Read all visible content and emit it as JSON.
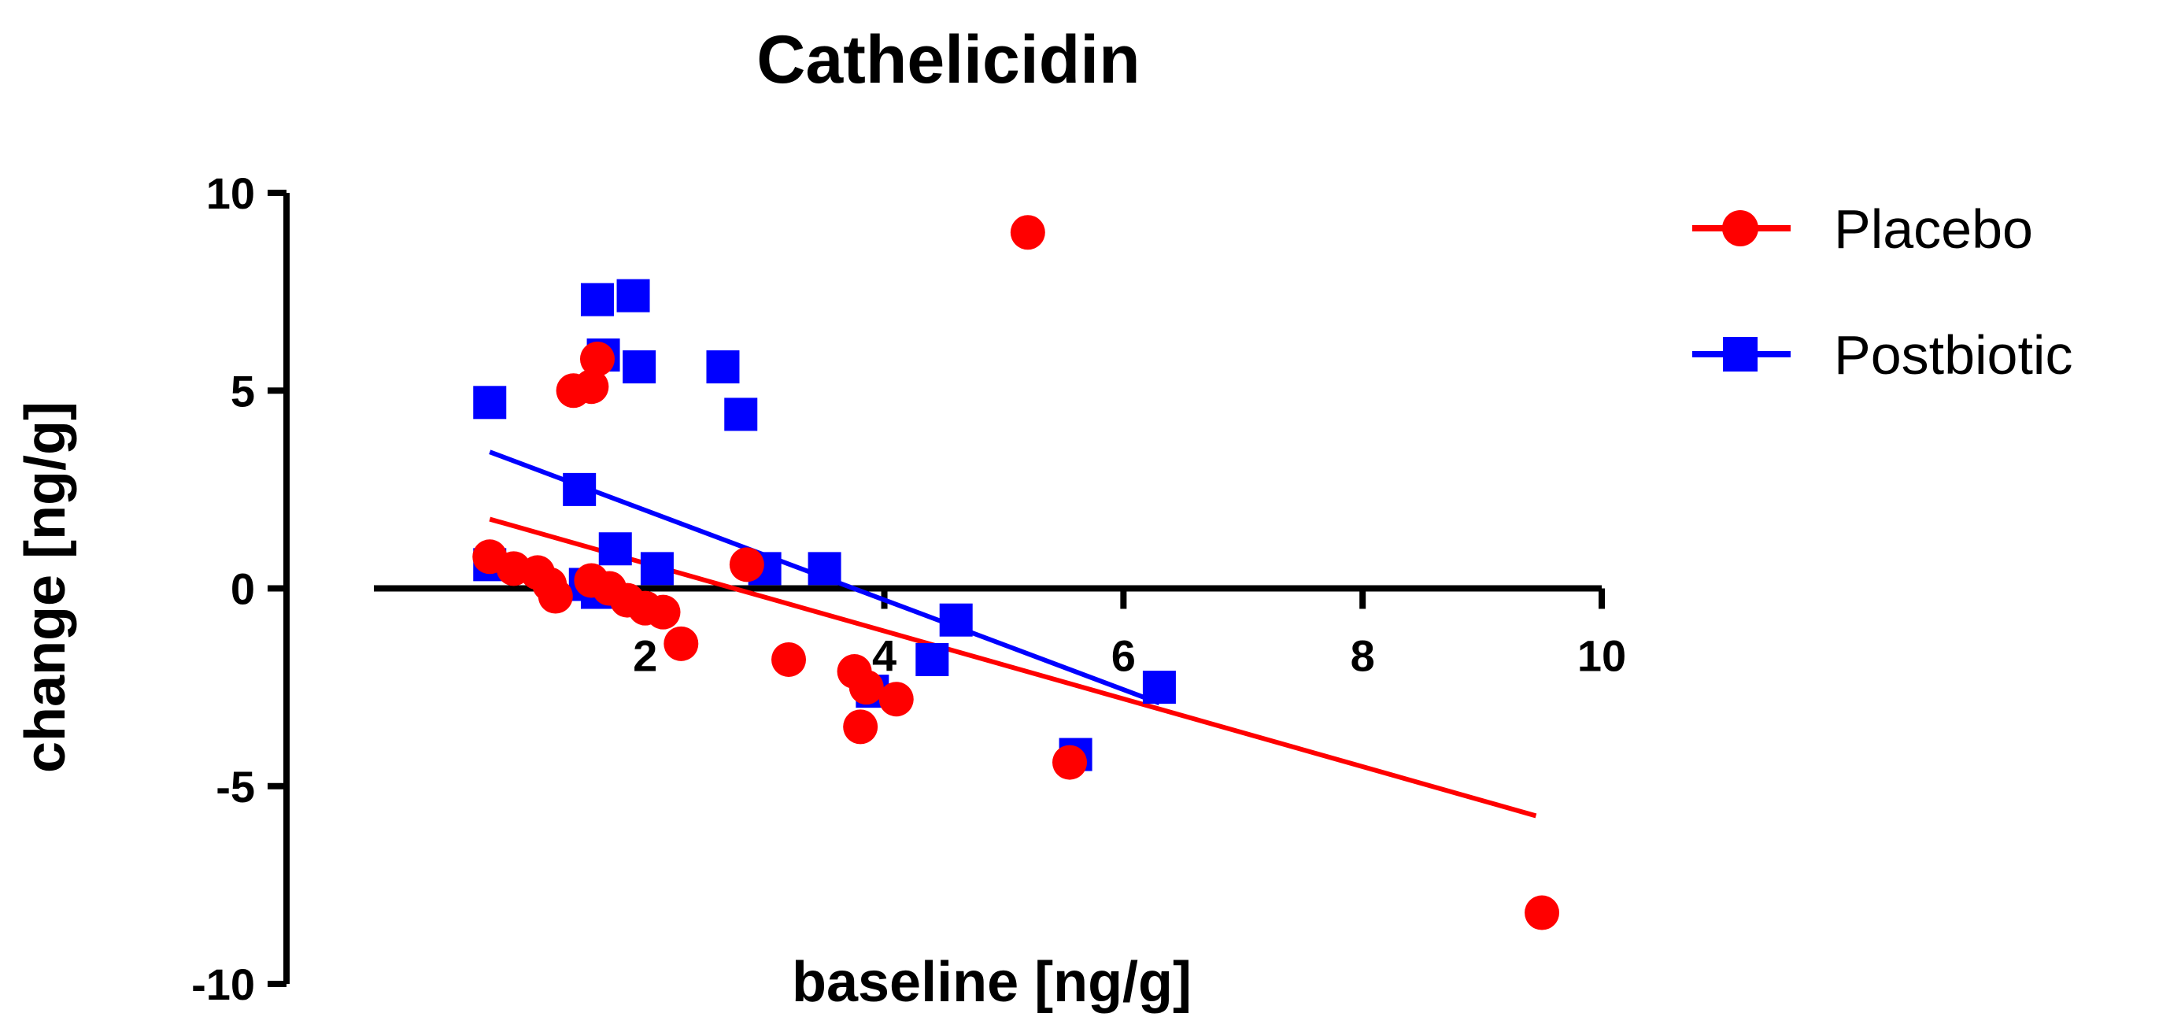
{
  "chart_data": {
    "type": "scatter",
    "title": "Cathelicidin",
    "xlabel": "baseline [ng/g]",
    "ylabel": "change [ng/g]",
    "xlim": [
      -1,
      10
    ],
    "ylim": [
      -10,
      10
    ],
    "x_ticks": [
      2,
      4,
      6,
      8,
      10
    ],
    "y_ticks": [
      10,
      5,
      0,
      -5,
      -10
    ],
    "legend_position": "top-right",
    "series": [
      {
        "name": "Placebo",
        "color": "#ff0000",
        "marker": "circle",
        "points": [
          {
            "x": 0.7,
            "y": 0.8
          },
          {
            "x": 0.9,
            "y": 0.5
          },
          {
            "x": 1.1,
            "y": 0.4
          },
          {
            "x": 1.2,
            "y": 0.1
          },
          {
            "x": 1.25,
            "y": -0.2
          },
          {
            "x": 1.4,
            "y": 5.0
          },
          {
            "x": 1.55,
            "y": 5.1
          },
          {
            "x": 1.6,
            "y": 5.8
          },
          {
            "x": 1.55,
            "y": 0.2
          },
          {
            "x": 1.7,
            "y": 0.0
          },
          {
            "x": 1.85,
            "y": -0.3
          },
          {
            "x": 2.0,
            "y": -0.5
          },
          {
            "x": 2.15,
            "y": -0.6
          },
          {
            "x": 2.3,
            "y": -1.4
          },
          {
            "x": 2.85,
            "y": 0.6
          },
          {
            "x": 3.2,
            "y": -1.8
          },
          {
            "x": 3.75,
            "y": -2.1
          },
          {
            "x": 3.85,
            "y": -2.5
          },
          {
            "x": 3.8,
            "y": -3.5
          },
          {
            "x": 4.1,
            "y": -2.8
          },
          {
            "x": 5.2,
            "y": 9.0
          },
          {
            "x": 5.55,
            "y": -4.4
          },
          {
            "x": 9.5,
            "y": -8.2
          }
        ],
        "fit_line": {
          "x": [
            0.7,
            9.45
          ],
          "y": [
            1.75,
            -5.75
          ]
        }
      },
      {
        "name": "Postbiotic",
        "color": "#0000ff",
        "marker": "square",
        "points": [
          {
            "x": 0.7,
            "y": 4.7
          },
          {
            "x": 0.7,
            "y": 0.6
          },
          {
            "x": 1.45,
            "y": 2.5
          },
          {
            "x": 1.6,
            "y": 7.3
          },
          {
            "x": 1.9,
            "y": 7.4
          },
          {
            "x": 1.65,
            "y": 5.9
          },
          {
            "x": 1.95,
            "y": 5.6
          },
          {
            "x": 1.5,
            "y": 0.1
          },
          {
            "x": 1.75,
            "y": 1.0
          },
          {
            "x": 1.6,
            "y": -0.1
          },
          {
            "x": 2.1,
            "y": 0.5
          },
          {
            "x": 2.65,
            "y": 5.6
          },
          {
            "x": 2.8,
            "y": 4.4
          },
          {
            "x": 3.0,
            "y": 0.5
          },
          {
            "x": 3.5,
            "y": 0.5
          },
          {
            "x": 3.9,
            "y": -2.6
          },
          {
            "x": 4.4,
            "y": -1.8
          },
          {
            "x": 4.6,
            "y": -0.8
          },
          {
            "x": 5.6,
            "y": -4.2
          },
          {
            "x": 6.3,
            "y": -2.5
          }
        ],
        "fit_line": {
          "x": [
            0.7,
            6.3
          ],
          "y": [
            3.45,
            -2.9
          ]
        }
      }
    ]
  }
}
